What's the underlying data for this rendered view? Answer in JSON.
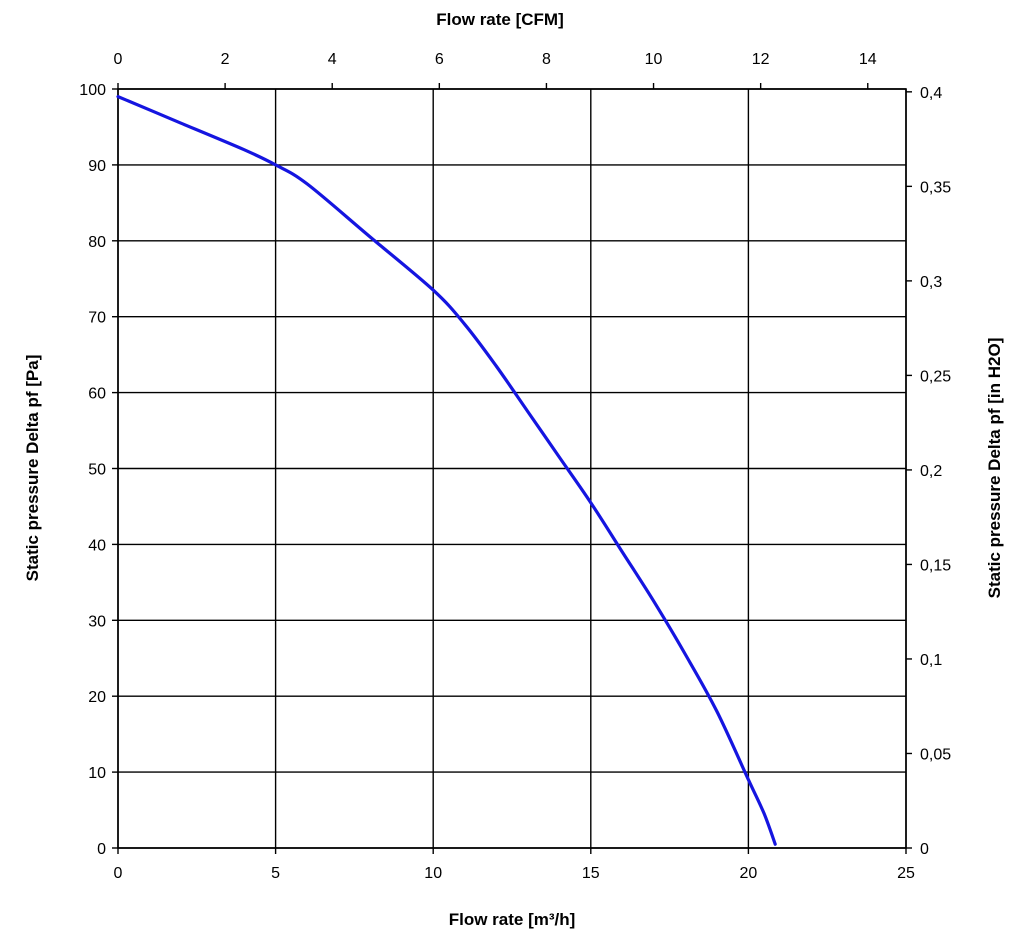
{
  "chart_data": {
    "type": "line",
    "x_axis_bottom": {
      "label": "Flow rate [m³/h]",
      "range": [
        0,
        25
      ],
      "ticks": [
        "0",
        "5",
        "10",
        "15",
        "20",
        "25"
      ]
    },
    "x_axis_top": {
      "label": "Flow rate [CFM]",
      "range": [
        0,
        14.714
      ],
      "ticks": [
        "0",
        "2",
        "4",
        "6",
        "8",
        "10",
        "12",
        "14"
      ]
    },
    "y_axis_left": {
      "label": "Static pressure Delta pf [Pa]",
      "range": [
        0,
        100
      ],
      "ticks": [
        "0",
        "10",
        "20",
        "30",
        "40",
        "50",
        "60",
        "70",
        "80",
        "90",
        "100"
      ]
    },
    "y_axis_right": {
      "label": "Static pressure Delta pf [in H2O]",
      "range": [
        0,
        0.4015
      ],
      "ticks": [
        "0",
        "0,05",
        "0,1",
        "0,15",
        "0,2",
        "0,25",
        "0,3",
        "0,35",
        "0,4"
      ]
    },
    "grid": true,
    "series": [
      {
        "color": "#1515e0",
        "x": [
          0,
          2,
          4,
          5,
          6,
          8,
          10,
          11,
          12,
          13,
          14,
          15,
          16,
          17,
          18,
          19,
          20,
          20.5,
          20.85
        ],
        "y": [
          99,
          95.5,
          92,
          90,
          87.5,
          80.5,
          73.5,
          69,
          63.5,
          57.5,
          51.5,
          45.5,
          39,
          32.5,
          25.5,
          18,
          9,
          4.5,
          0.5
        ]
      }
    ]
  }
}
